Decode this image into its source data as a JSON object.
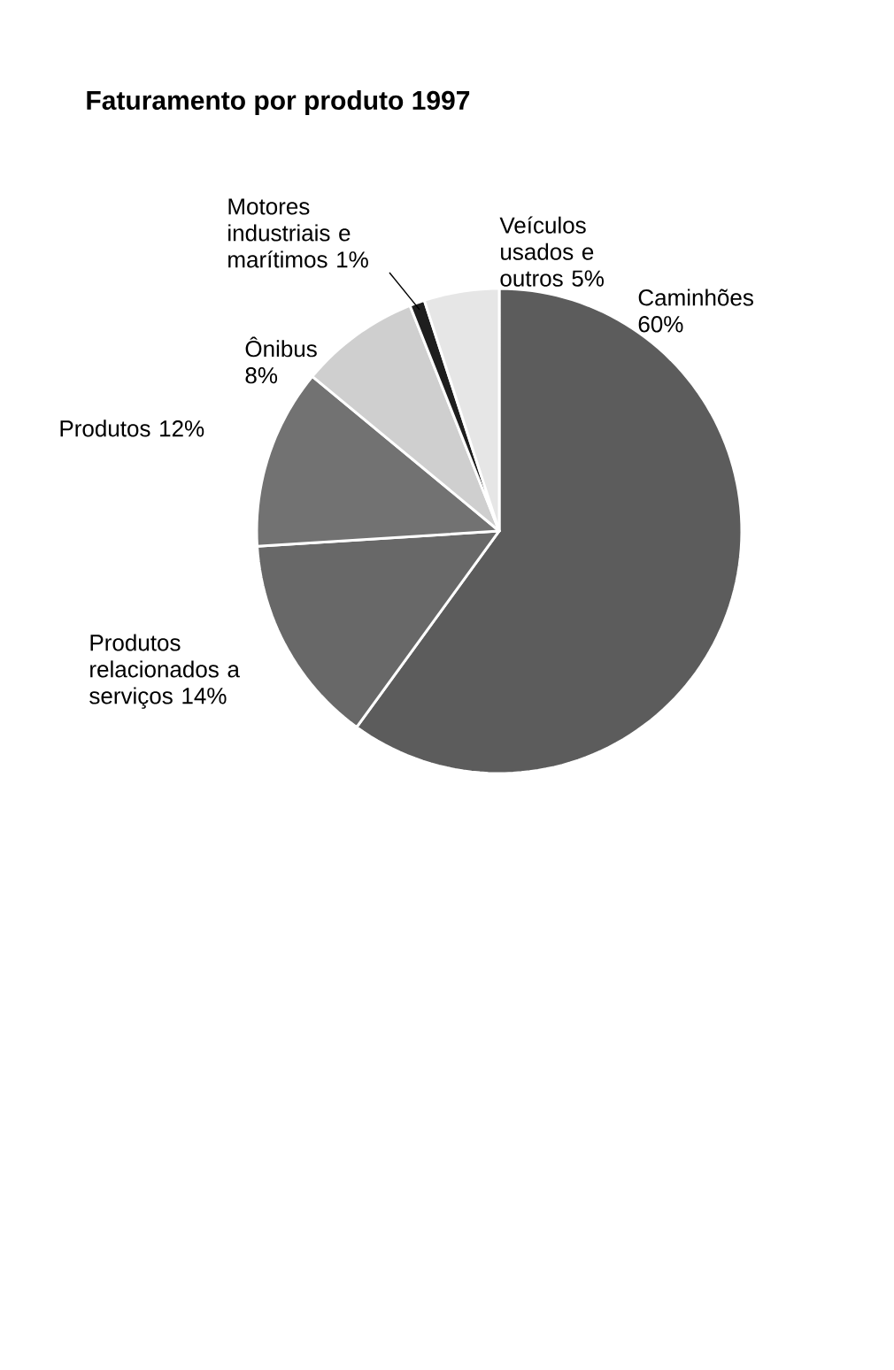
{
  "chart_data": {
    "type": "pie",
    "title": "Faturamento por produto 1997",
    "categories": [
      "Caminhões",
      "Produtos relacionados a serviços",
      "Produtos",
      "Ônibus",
      "Motores industriais e marítimos",
      "Veículos usados e outros"
    ],
    "values": [
      60,
      14,
      12,
      8,
      1,
      5
    ],
    "value_labels": [
      "60%",
      "14%",
      "12%",
      "8%",
      "1%",
      "5%"
    ],
    "colors": [
      "#5c5c5c",
      "#686868",
      "#727272",
      "#cfcfcf",
      "#1e1e1e",
      "#e6e6e6"
    ]
  }
}
